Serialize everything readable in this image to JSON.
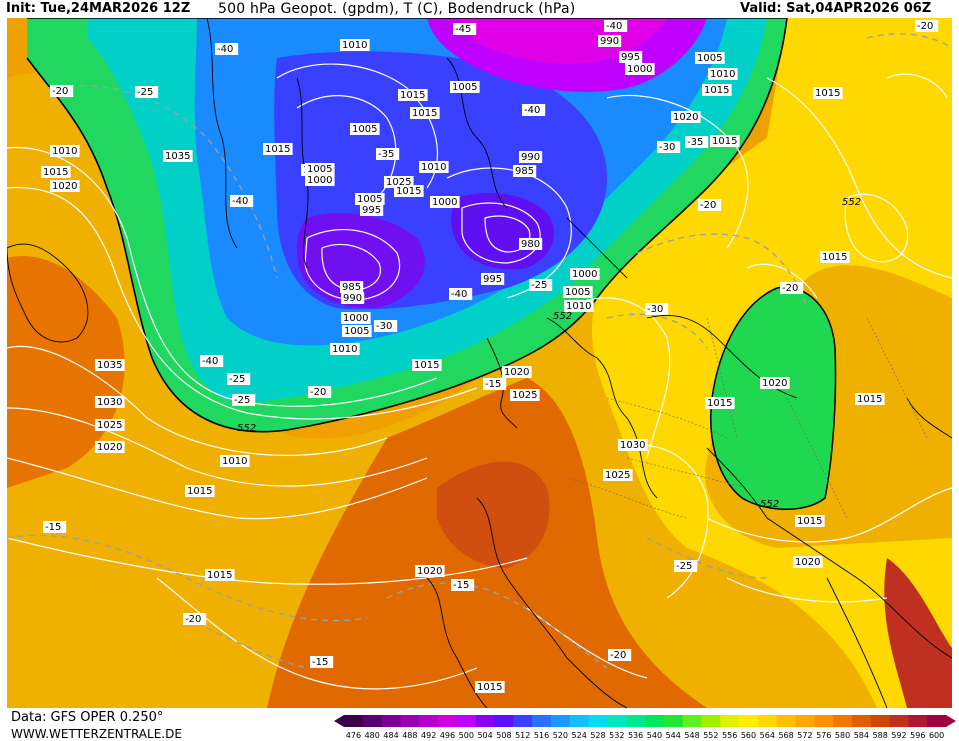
{
  "header": {
    "init": "Init: Tue,24MAR2026 12Z",
    "title": "500 hPa Geopot. (gpdm), T (C), Bodendruck (hPa)",
    "valid": "Valid: Sat,04APR2026 06Z"
  },
  "footer": {
    "source": "Data: GFS OPER 0.250°",
    "site": "WWW.WETTERZENTRALE.DE"
  },
  "colorbar": {
    "labels": [
      "476",
      "480",
      "484",
      "488",
      "492",
      "496",
      "500",
      "504",
      "508",
      "512",
      "516",
      "520",
      "524",
      "528",
      "532",
      "536",
      "540",
      "544",
      "548",
      "552",
      "556",
      "560",
      "564",
      "568",
      "572",
      "576",
      "580",
      "584",
      "588",
      "592",
      "596",
      "600"
    ],
    "colors": [
      "#3a004a",
      "#580070",
      "#7a0096",
      "#9a00b4",
      "#b800cc",
      "#d000e0",
      "#c000ff",
      "#8a00f0",
      "#5a10ff",
      "#3a40ff",
      "#2a70ff",
      "#1a9aff",
      "#10c0ff",
      "#08dcf0",
      "#00e6c0",
      "#00e890",
      "#00e860",
      "#20e830",
      "#60f020",
      "#a0f000",
      "#e0f000",
      "#ffee00",
      "#ffd800",
      "#ffc000",
      "#ffa800",
      "#ff9000",
      "#f07800",
      "#e06000",
      "#d04800",
      "#c03020",
      "#b01830",
      "#a00040"
    ]
  },
  "map": {
    "isobar_labels": [
      "1010",
      "1015",
      "1005",
      "1005",
      "1015",
      "1005",
      "1015",
      "990",
      "995",
      "1000",
      "1005",
      "1010",
      "1015",
      "1020",
      "1015",
      "1010",
      "1015",
      "1020",
      "1035",
      "1005",
      "1000",
      "990",
      "985",
      "1025",
      "1015",
      "1010",
      "1005",
      "995",
      "1000",
      "985",
      "990",
      "1000",
      "1005",
      "1010",
      "995",
      "980",
      "1000",
      "1005",
      "1010",
      "1015",
      "1020",
      "1025",
      "1035",
      "1030",
      "1025",
      "1020",
      "1010",
      "1015",
      "1015",
      "1030",
      "1025",
      "1015",
      "1020",
      "1015",
      "1020",
      "1015",
      "1015",
      "1015",
      "1020",
      "1015"
    ],
    "temperature_labels": [
      "-45",
      "-40",
      "-40",
      "-40",
      "-25",
      "-20",
      "-40",
      "-35",
      "-30",
      "-35",
      "-40",
      "-40",
      "-30",
      "-25",
      "-20",
      "-25",
      "-20",
      "-25",
      "-30",
      "-20",
      "-15",
      "-15",
      "-15",
      "-25",
      "-20",
      "-20",
      "-15",
      "-20"
    ],
    "geopotential_labels": [
      "552",
      "552",
      "552",
      "552"
    ]
  }
}
